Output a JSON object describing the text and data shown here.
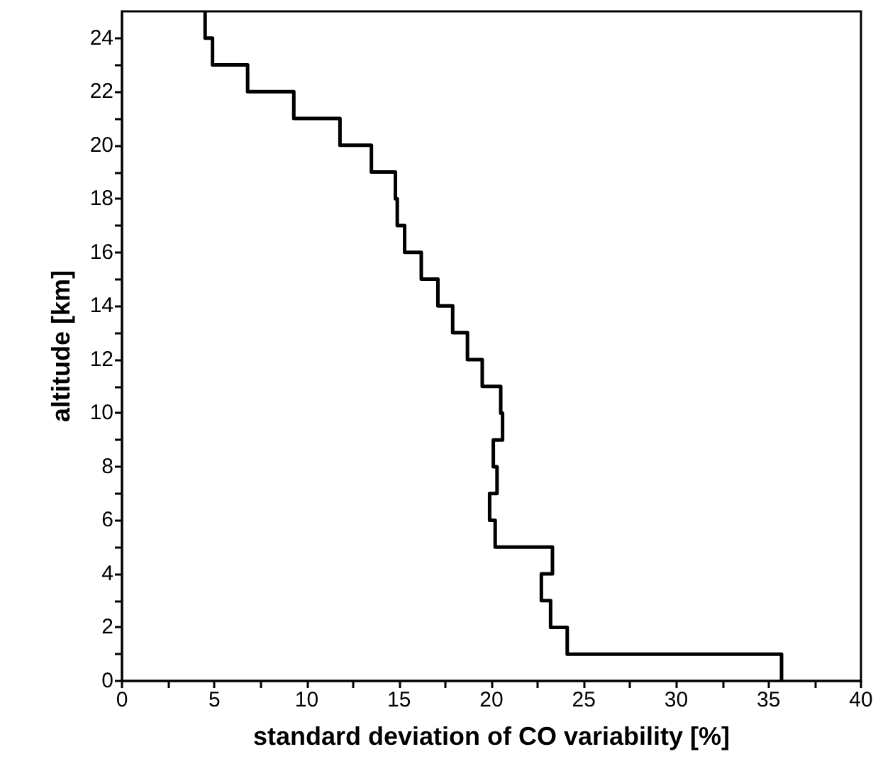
{
  "chart_data": {
    "type": "line",
    "xlabel": "standard deviation of CO variability [%]",
    "ylabel": "altitude [km]",
    "series": [
      {
        "color": "#000000",
        "x": [
          35.7,
          35.7,
          24.1,
          24.1,
          23.2,
          23.2,
          22.7,
          22.7,
          23.3,
          23.3,
          20.2,
          20.2,
          19.9,
          19.9,
          20.3,
          20.3,
          20.1,
          20.1,
          20.6,
          20.6,
          20.5,
          20.5,
          19.5,
          19.5,
          18.7,
          18.7,
          17.9,
          17.9,
          17.1,
          17.1,
          16.2,
          16.2,
          15.3,
          15.3,
          14.9,
          14.9,
          14.8,
          14.8,
          13.5,
          13.5,
          11.8,
          11.8,
          9.3,
          9.3,
          6.8,
          6.8,
          4.9,
          4.9,
          4.5,
          4.5
        ],
        "values": [
          0,
          1,
          1,
          2,
          2,
          3,
          3,
          4,
          4,
          5,
          5,
          6,
          6,
          7,
          7,
          8,
          8,
          9,
          9,
          10,
          10,
          11,
          11,
          12,
          12,
          13,
          13,
          14,
          14,
          15,
          15,
          16,
          16,
          17,
          17,
          18,
          18,
          19,
          19,
          20,
          20,
          21,
          21,
          22,
          22,
          23,
          23,
          24,
          24,
          25
        ]
      }
    ],
    "xlim": [
      0,
      40
    ],
    "xticks": [
      0,
      {
        "value": 2.5,
        "label": null
      },
      5,
      {
        "value": 7.5,
        "label": null
      },
      10,
      {
        "value": 12.5,
        "label": null
      },
      15,
      {
        "value": 17.5,
        "label": null
      },
      20,
      {
        "value": 22.5,
        "label": null
      },
      25,
      {
        "value": 27.5,
        "label": null
      },
      30,
      {
        "value": 32.5,
        "label": null
      },
      35,
      {
        "value": 37.5,
        "label": null
      },
      40
    ],
    "ylim": [
      0,
      25
    ],
    "yticks": [
      0,
      {
        "value": 1,
        "label": null
      },
      2,
      {
        "value": 3,
        "label": null
      },
      4,
      {
        "value": 5,
        "label": null
      },
      6,
      {
        "value": 7,
        "label": null
      },
      8,
      {
        "value": 9,
        "label": null
      },
      10,
      {
        "value": 11,
        "label": null
      },
      12,
      {
        "value": 13,
        "label": null
      },
      14,
      {
        "value": 15,
        "label": null
      },
      16,
      {
        "value": 17,
        "label": null
      },
      18,
      {
        "value": 19,
        "label": null
      },
      20,
      {
        "value": 21,
        "label": null
      },
      22,
      {
        "value": 23,
        "label": null
      },
      24
    ],
    "grid": false,
    "marker": "none",
    "line_style": "solid"
  }
}
